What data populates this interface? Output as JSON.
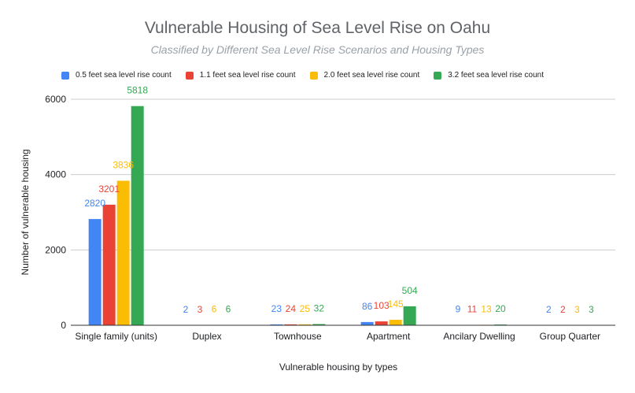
{
  "chart_data": {
    "type": "bar",
    "title": "Vulnerable Housing of Sea Level Rise on Oahu",
    "subtitle": "Classified by Different Sea Level Rise Scenarios and Housing Types",
    "xlabel": "Vulnerable housing by types",
    "ylabel": "Number of vulnerable housing",
    "ylim": [
      0,
      6000
    ],
    "yticks": [
      0,
      2000,
      4000,
      6000
    ],
    "grid": true,
    "legend_position": "top",
    "categories": [
      "Single family (units)",
      "Duplex",
      "Townhouse",
      "Apartment",
      "Ancilary Dwelling",
      "Group Quarter"
    ],
    "series": [
      {
        "name": "0.5 feet sea level rise count",
        "color": "#4285f4",
        "values": [
          2820,
          2,
          23,
          86,
          9,
          2
        ]
      },
      {
        "name": "1.1 feet sea level rise count",
        "color": "#ea4335",
        "values": [
          3201,
          3,
          24,
          103,
          11,
          2
        ]
      },
      {
        "name": "2.0 feet sea level rise count",
        "color": "#fbbc04",
        "values": [
          3836,
          6,
          25,
          145,
          13,
          3
        ]
      },
      {
        "name": "3.2 feet sea level rise count",
        "color": "#34a853",
        "values": [
          5818,
          6,
          32,
          504,
          20,
          3
        ]
      }
    ]
  }
}
